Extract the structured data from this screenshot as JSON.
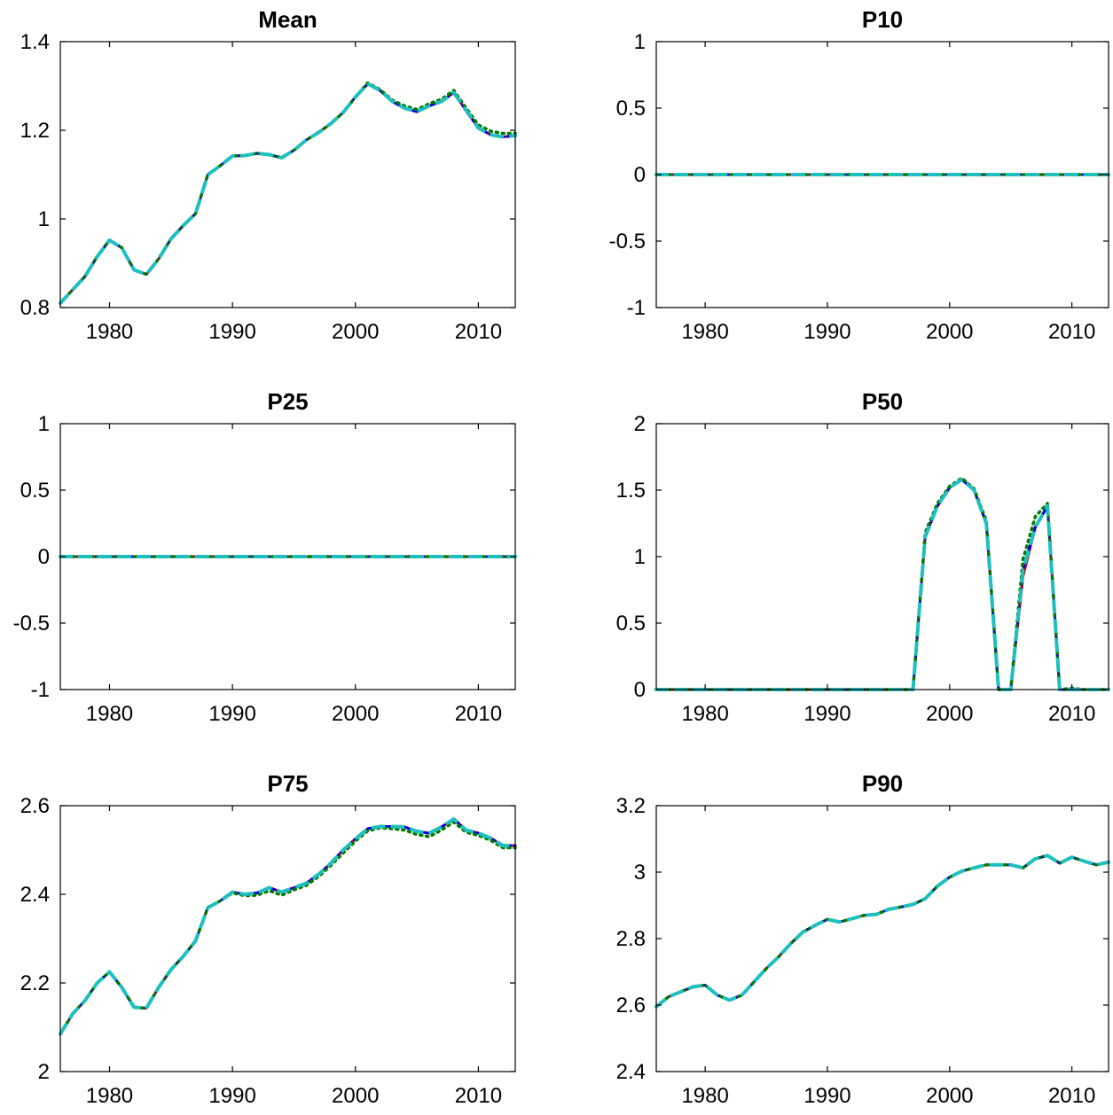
{
  "chart_data": [
    {
      "type": "line",
      "title": "Mean",
      "xlim": [
        1976,
        2013
      ],
      "ylim": [
        0.8,
        1.4
      ],
      "xticks": [
        1980,
        1990,
        2000,
        2010
      ],
      "yticks": [
        0.8,
        1.0,
        1.2,
        1.4
      ],
      "xticklabels": [
        "1980",
        "1990",
        "2000",
        "2010"
      ],
      "yticklabels": [
        "0.8",
        "1",
        "1.2",
        "1.4"
      ],
      "x": [
        1976,
        1977,
        1978,
        1979,
        1980,
        1981,
        1982,
        1983,
        1984,
        1985,
        1986,
        1987,
        1988,
        1989,
        1990,
        1991,
        1992,
        1993,
        1994,
        1995,
        1996,
        1997,
        1998,
        1999,
        2000,
        2001,
        2002,
        2003,
        2004,
        2005,
        2006,
        2007,
        2008,
        2009,
        2010,
        2011,
        2012,
        2013
      ],
      "series": [
        {
          "color": "#d40000",
          "style": "solid",
          "values": [
            0.81,
            0.84,
            0.87,
            0.915,
            0.952,
            0.935,
            0.885,
            0.875,
            0.91,
            0.955,
            0.985,
            1.012,
            1.1,
            1.12,
            1.142,
            1.143,
            1.148,
            1.145,
            1.138,
            1.155,
            1.178,
            1.195,
            1.215,
            1.24,
            1.275,
            1.305,
            1.29,
            1.265,
            1.25,
            1.242,
            1.255,
            1.265,
            1.285,
            1.245,
            1.205,
            1.19,
            1.185,
            1.188
          ]
        },
        {
          "color": "#0000e6",
          "style": "dashdot",
          "values": [
            0.81,
            0.84,
            0.87,
            0.915,
            0.952,
            0.935,
            0.885,
            0.875,
            0.91,
            0.955,
            0.985,
            1.012,
            1.1,
            1.12,
            1.142,
            1.143,
            1.148,
            1.145,
            1.138,
            1.155,
            1.178,
            1.195,
            1.215,
            1.24,
            1.275,
            1.305,
            1.29,
            1.265,
            1.25,
            1.242,
            1.255,
            1.265,
            1.285,
            1.245,
            1.205,
            1.19,
            1.185,
            1.188
          ]
        },
        {
          "color": "#007a00",
          "style": "dotted",
          "values": [
            0.81,
            0.84,
            0.87,
            0.915,
            0.952,
            0.935,
            0.885,
            0.875,
            0.91,
            0.955,
            0.985,
            1.012,
            1.1,
            1.12,
            1.142,
            1.143,
            1.148,
            1.145,
            1.138,
            1.155,
            1.178,
            1.195,
            1.215,
            1.24,
            1.275,
            1.307,
            1.292,
            1.268,
            1.255,
            1.247,
            1.26,
            1.27,
            1.29,
            1.25,
            1.212,
            1.198,
            1.193,
            1.193
          ]
        },
        {
          "color": "#1fbfbf",
          "style": "dashed",
          "values": [
            0.81,
            0.84,
            0.87,
            0.915,
            0.952,
            0.935,
            0.885,
            0.875,
            0.91,
            0.955,
            0.985,
            1.012,
            1.1,
            1.12,
            1.142,
            1.143,
            1.148,
            1.145,
            1.138,
            1.155,
            1.178,
            1.195,
            1.215,
            1.24,
            1.275,
            1.305,
            1.29,
            1.265,
            1.25,
            1.242,
            1.255,
            1.265,
            1.285,
            1.245,
            1.205,
            1.19,
            1.185,
            1.188
          ]
        }
      ]
    },
    {
      "type": "line",
      "title": "P10",
      "xlim": [
        1976,
        2013
      ],
      "ylim": [
        -1,
        1
      ],
      "xticks": [
        1980,
        1990,
        2000,
        2010
      ],
      "yticks": [
        -1,
        -0.5,
        0,
        0.5,
        1
      ],
      "xticklabels": [
        "1980",
        "1990",
        "2000",
        "2010"
      ],
      "yticklabels": [
        "-1",
        "-0.5",
        "0",
        "0.5",
        "1"
      ],
      "x": [
        1976,
        2013
      ],
      "series": [
        {
          "color": "#d40000",
          "style": "solid",
          "values": [
            0,
            0
          ]
        },
        {
          "color": "#0000e6",
          "style": "dashdot",
          "values": [
            0,
            0
          ]
        },
        {
          "color": "#007a00",
          "style": "dotted",
          "values": [
            0,
            0
          ]
        },
        {
          "color": "#1fbfbf",
          "style": "dashed",
          "values": [
            0,
            0
          ]
        }
      ]
    },
    {
      "type": "line",
      "title": "P25",
      "xlim": [
        1976,
        2013
      ],
      "ylim": [
        -1,
        1
      ],
      "xticks": [
        1980,
        1990,
        2000,
        2010
      ],
      "yticks": [
        -1,
        -0.5,
        0,
        0.5,
        1
      ],
      "xticklabels": [
        "1980",
        "1990",
        "2000",
        "2010"
      ],
      "yticklabels": [
        "-1",
        "-0.5",
        "0",
        "0.5",
        "1"
      ],
      "x": [
        1976,
        2013
      ],
      "series": [
        {
          "color": "#d40000",
          "style": "solid",
          "values": [
            0,
            0
          ]
        },
        {
          "color": "#0000e6",
          "style": "dashdot",
          "values": [
            0,
            0
          ]
        },
        {
          "color": "#007a00",
          "style": "dotted",
          "values": [
            0,
            0
          ]
        },
        {
          "color": "#1fbfbf",
          "style": "dashed",
          "values": [
            0,
            0
          ]
        }
      ]
    },
    {
      "type": "line",
      "title": "P50",
      "xlim": [
        1976,
        2013
      ],
      "ylim": [
        0,
        2
      ],
      "xticks": [
        1980,
        1990,
        2000,
        2010
      ],
      "yticks": [
        0,
        0.5,
        1,
        1.5,
        2
      ],
      "xticklabels": [
        "1980",
        "1990",
        "2000",
        "2010"
      ],
      "yticklabels": [
        "0",
        "0.5",
        "1",
        "1.5",
        "2"
      ],
      "x": [
        1976,
        1977,
        1978,
        1979,
        1980,
        1981,
        1982,
        1983,
        1984,
        1985,
        1986,
        1987,
        1988,
        1989,
        1990,
        1991,
        1992,
        1993,
        1994,
        1995,
        1996,
        1997,
        1998,
        1999,
        2000,
        2001,
        2002,
        2003,
        2004,
        2005,
        2006,
        2007,
        2008,
        2009,
        2010,
        2011,
        2012,
        2013
      ],
      "series": [
        {
          "color": "#d40000",
          "style": "solid",
          "values": [
            0,
            0,
            0,
            0,
            0,
            0,
            0,
            0,
            0,
            0,
            0,
            0,
            0,
            0,
            0,
            0,
            0,
            0,
            0,
            0,
            0,
            0,
            1.15,
            1.38,
            1.52,
            1.58,
            1.5,
            1.25,
            0,
            0,
            0.85,
            1.22,
            1.38,
            0,
            0,
            0,
            0,
            0
          ]
        },
        {
          "color": "#0000e6",
          "style": "dashdot",
          "values": [
            0,
            0,
            0,
            0,
            0,
            0,
            0,
            0,
            0,
            0,
            0,
            0,
            0,
            0,
            0,
            0,
            0,
            0,
            0,
            0,
            0,
            0,
            1.15,
            1.38,
            1.52,
            1.58,
            1.5,
            1.25,
            0,
            0,
            0.9,
            1.22,
            1.38,
            0,
            0,
            0,
            0,
            0
          ]
        },
        {
          "color": "#007a00",
          "style": "dotted",
          "values": [
            0,
            0,
            0,
            0,
            0,
            0,
            0,
            0,
            0,
            0,
            0,
            0,
            0,
            0,
            0,
            0,
            0,
            0,
            0,
            0,
            0,
            0,
            1.18,
            1.4,
            1.53,
            1.59,
            1.51,
            1.27,
            0,
            0,
            0.98,
            1.3,
            1.4,
            0,
            0.01,
            0,
            0,
            0
          ]
        },
        {
          "color": "#1fbfbf",
          "style": "dashed",
          "values": [
            0,
            0,
            0,
            0,
            0,
            0,
            0,
            0,
            0,
            0,
            0,
            0,
            0,
            0,
            0,
            0,
            0,
            0,
            0,
            0,
            0,
            0,
            1.15,
            1.38,
            1.52,
            1.58,
            1.5,
            1.25,
            0,
            0,
            0.9,
            1.22,
            1.38,
            0,
            0,
            0,
            0,
            0
          ]
        }
      ]
    },
    {
      "type": "line",
      "title": "P75",
      "xlim": [
        1976,
        2013
      ],
      "ylim": [
        2,
        2.6
      ],
      "xticks": [
        1980,
        1990,
        2000,
        2010
      ],
      "yticks": [
        2.0,
        2.2,
        2.4,
        2.6
      ],
      "xticklabels": [
        "1980",
        "1990",
        "2000",
        "2010"
      ],
      "yticklabels": [
        "2",
        "2.2",
        "2.4",
        "2.6"
      ],
      "x": [
        1976,
        1977,
        1978,
        1979,
        1980,
        1981,
        1982,
        1983,
        1984,
        1985,
        1986,
        1987,
        1988,
        1989,
        1990,
        1991,
        1992,
        1993,
        1994,
        1995,
        1996,
        1997,
        1998,
        1999,
        2000,
        2001,
        2002,
        2003,
        2004,
        2005,
        2006,
        2007,
        2008,
        2009,
        2010,
        2011,
        2012,
        2013
      ],
      "series": [
        {
          "color": "#d40000",
          "style": "solid",
          "values": [
            2.085,
            2.13,
            2.16,
            2.2,
            2.225,
            2.19,
            2.145,
            2.143,
            2.19,
            2.23,
            2.26,
            2.295,
            2.37,
            2.385,
            2.405,
            2.4,
            2.403,
            2.415,
            2.405,
            2.415,
            2.425,
            2.445,
            2.47,
            2.5,
            2.525,
            2.548,
            2.553,
            2.553,
            2.552,
            2.542,
            2.538,
            2.552,
            2.57,
            2.545,
            2.538,
            2.527,
            2.51,
            2.51
          ]
        },
        {
          "color": "#0000e6",
          "style": "dashdot",
          "values": [
            2.085,
            2.13,
            2.16,
            2.2,
            2.225,
            2.19,
            2.145,
            2.143,
            2.19,
            2.23,
            2.26,
            2.295,
            2.37,
            2.385,
            2.405,
            2.4,
            2.403,
            2.415,
            2.405,
            2.415,
            2.425,
            2.445,
            2.47,
            2.5,
            2.525,
            2.548,
            2.553,
            2.553,
            2.552,
            2.542,
            2.538,
            2.552,
            2.57,
            2.545,
            2.538,
            2.527,
            2.51,
            2.51
          ]
        },
        {
          "color": "#007a00",
          "style": "dotted",
          "values": [
            2.085,
            2.13,
            2.16,
            2.2,
            2.225,
            2.19,
            2.145,
            2.143,
            2.19,
            2.23,
            2.26,
            2.295,
            2.37,
            2.385,
            2.403,
            2.397,
            2.398,
            2.408,
            2.398,
            2.41,
            2.42,
            2.44,
            2.465,
            2.493,
            2.52,
            2.543,
            2.55,
            2.548,
            2.545,
            2.535,
            2.53,
            2.545,
            2.563,
            2.54,
            2.533,
            2.522,
            2.505,
            2.505
          ]
        },
        {
          "color": "#1fbfbf",
          "style": "dashed",
          "values": [
            2.085,
            2.13,
            2.16,
            2.2,
            2.225,
            2.19,
            2.145,
            2.143,
            2.19,
            2.23,
            2.26,
            2.295,
            2.37,
            2.385,
            2.405,
            2.4,
            2.403,
            2.415,
            2.405,
            2.415,
            2.425,
            2.445,
            2.47,
            2.5,
            2.525,
            2.548,
            2.553,
            2.553,
            2.552,
            2.542,
            2.538,
            2.552,
            2.57,
            2.545,
            2.538,
            2.527,
            2.51,
            2.51
          ]
        }
      ]
    },
    {
      "type": "line",
      "title": "P90",
      "xlim": [
        1976,
        2013
      ],
      "ylim": [
        2.4,
        3.2
      ],
      "xticks": [
        1980,
        1990,
        2000,
        2010
      ],
      "yticks": [
        2.4,
        2.6,
        2.8,
        3.0,
        3.2
      ],
      "xticklabels": [
        "1980",
        "1990",
        "2000",
        "2010"
      ],
      "yticklabels": [
        "2.4",
        "2.6",
        "2.8",
        "3",
        "3.2"
      ],
      "x": [
        1976,
        1977,
        1978,
        1979,
        1980,
        1981,
        1982,
        1983,
        1984,
        1985,
        1986,
        1987,
        1988,
        1989,
        1990,
        1991,
        1992,
        1993,
        1994,
        1995,
        1996,
        1997,
        1998,
        1999,
        2000,
        2001,
        2002,
        2003,
        2004,
        2005,
        2006,
        2007,
        2008,
        2009,
        2010,
        2011,
        2012,
        2013
      ],
      "series": [
        {
          "color": "#d40000",
          "style": "solid",
          "values": [
            2.595,
            2.625,
            2.64,
            2.655,
            2.66,
            2.63,
            2.615,
            2.63,
            2.67,
            2.71,
            2.745,
            2.785,
            2.82,
            2.84,
            2.858,
            2.85,
            2.86,
            2.87,
            2.873,
            2.888,
            2.895,
            2.903,
            2.92,
            2.958,
            2.985,
            3.003,
            3.013,
            3.022,
            3.022,
            3.022,
            3.013,
            3.04,
            3.05,
            3.027,
            3.045,
            3.033,
            3.022,
            3.03
          ]
        },
        {
          "color": "#0000e6",
          "style": "dashdot",
          "values": [
            2.595,
            2.625,
            2.64,
            2.655,
            2.66,
            2.63,
            2.615,
            2.63,
            2.67,
            2.71,
            2.745,
            2.785,
            2.82,
            2.84,
            2.858,
            2.85,
            2.86,
            2.87,
            2.873,
            2.888,
            2.895,
            2.903,
            2.92,
            2.958,
            2.985,
            3.003,
            3.013,
            3.022,
            3.022,
            3.022,
            3.013,
            3.04,
            3.05,
            3.027,
            3.045,
            3.033,
            3.022,
            3.03
          ]
        },
        {
          "color": "#007a00",
          "style": "dotted",
          "values": [
            2.595,
            2.625,
            2.64,
            2.655,
            2.66,
            2.63,
            2.615,
            2.63,
            2.67,
            2.71,
            2.745,
            2.785,
            2.82,
            2.84,
            2.858,
            2.85,
            2.86,
            2.87,
            2.873,
            2.888,
            2.895,
            2.903,
            2.92,
            2.958,
            2.985,
            3.003,
            3.013,
            3.022,
            3.022,
            3.022,
            3.013,
            3.04,
            3.05,
            3.027,
            3.045,
            3.033,
            3.022,
            3.03
          ]
        },
        {
          "color": "#1fbfbf",
          "style": "dashed",
          "values": [
            2.595,
            2.625,
            2.64,
            2.655,
            2.66,
            2.63,
            2.615,
            2.63,
            2.67,
            2.71,
            2.745,
            2.785,
            2.82,
            2.84,
            2.858,
            2.85,
            2.86,
            2.87,
            2.873,
            2.888,
            2.895,
            2.903,
            2.92,
            2.958,
            2.985,
            3.003,
            3.013,
            3.022,
            3.022,
            3.022,
            3.013,
            3.04,
            3.05,
            3.027,
            3.045,
            3.033,
            3.022,
            3.03
          ]
        }
      ]
    }
  ]
}
